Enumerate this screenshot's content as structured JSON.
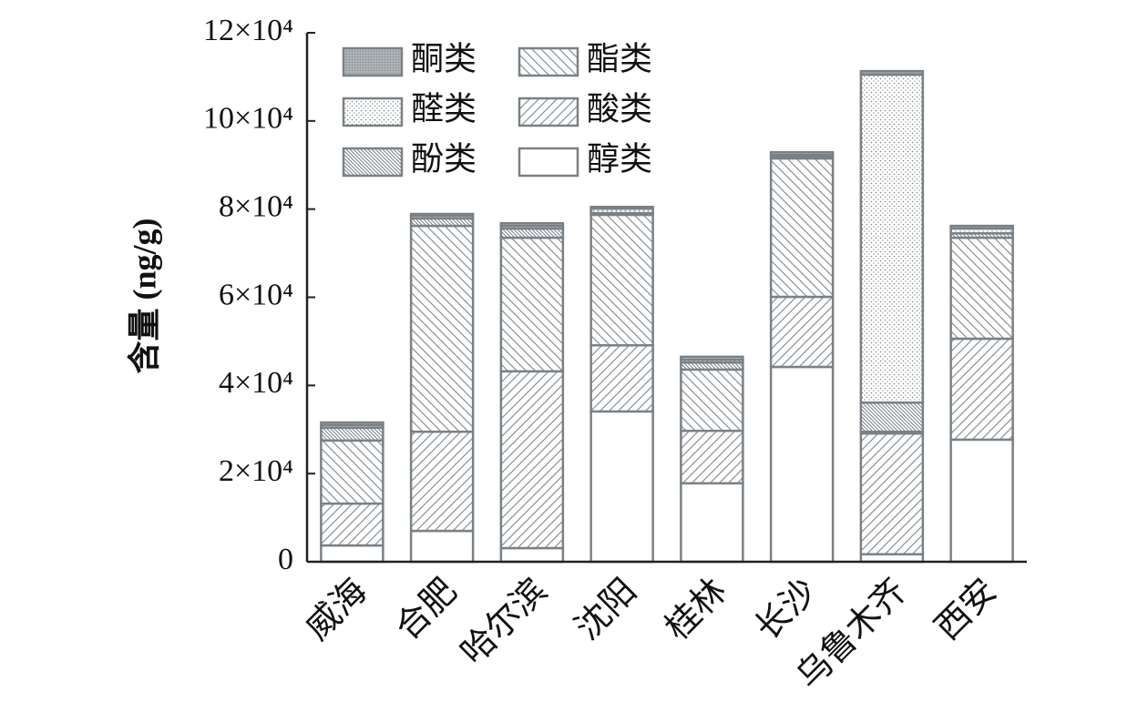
{
  "chart_data": {
    "type": "stacked_bar",
    "y_label": "含量 (ng/g)",
    "categories": [
      "威海",
      "合肥",
      "哈尔滨",
      "沈阳",
      "桂林",
      "长沙",
      "乌鲁木齐",
      "西安"
    ],
    "color": "#7a8186",
    "series": [
      {
        "name": "醇类",
        "values": [
          3700,
          7000,
          3100,
          34100,
          17800,
          44200,
          1700,
          27700
        ]
      },
      {
        "name": "酸类",
        "values": [
          9500,
          22500,
          40100,
          15000,
          11900,
          15900,
          27400,
          22900
        ]
      },
      {
        "name": "酯类",
        "values": [
          14300,
          46700,
          30300,
          29600,
          13900,
          31400,
          400,
          22900
        ]
      },
      {
        "name": "酚类",
        "values": [
          2900,
          1700,
          2100,
          400,
          1600,
          400,
          6600,
          1000
        ]
      },
      {
        "name": "醛类",
        "values": [
          600,
          600,
          600,
          1000,
          600,
          400,
          74400,
          1100
        ]
      },
      {
        "name": "酮类",
        "values": [
          600,
          400,
          600,
          400,
          700,
          600,
          800,
          600
        ]
      }
    ],
    "ylim": [
      0,
      120000
    ],
    "yticks": [
      0,
      {
        "value": 20000,
        "label": "2×10⁴"
      },
      {
        "value": 40000,
        "label": "4×10⁴"
      },
      {
        "value": 60000,
        "label": "6×10⁴"
      },
      {
        "value": 80000,
        "label": "8×10⁴"
      },
      {
        "value": 100000,
        "label": "10×10⁴"
      },
      {
        "value": 120000,
        "label": "12×10⁴"
      }
    ]
  }
}
